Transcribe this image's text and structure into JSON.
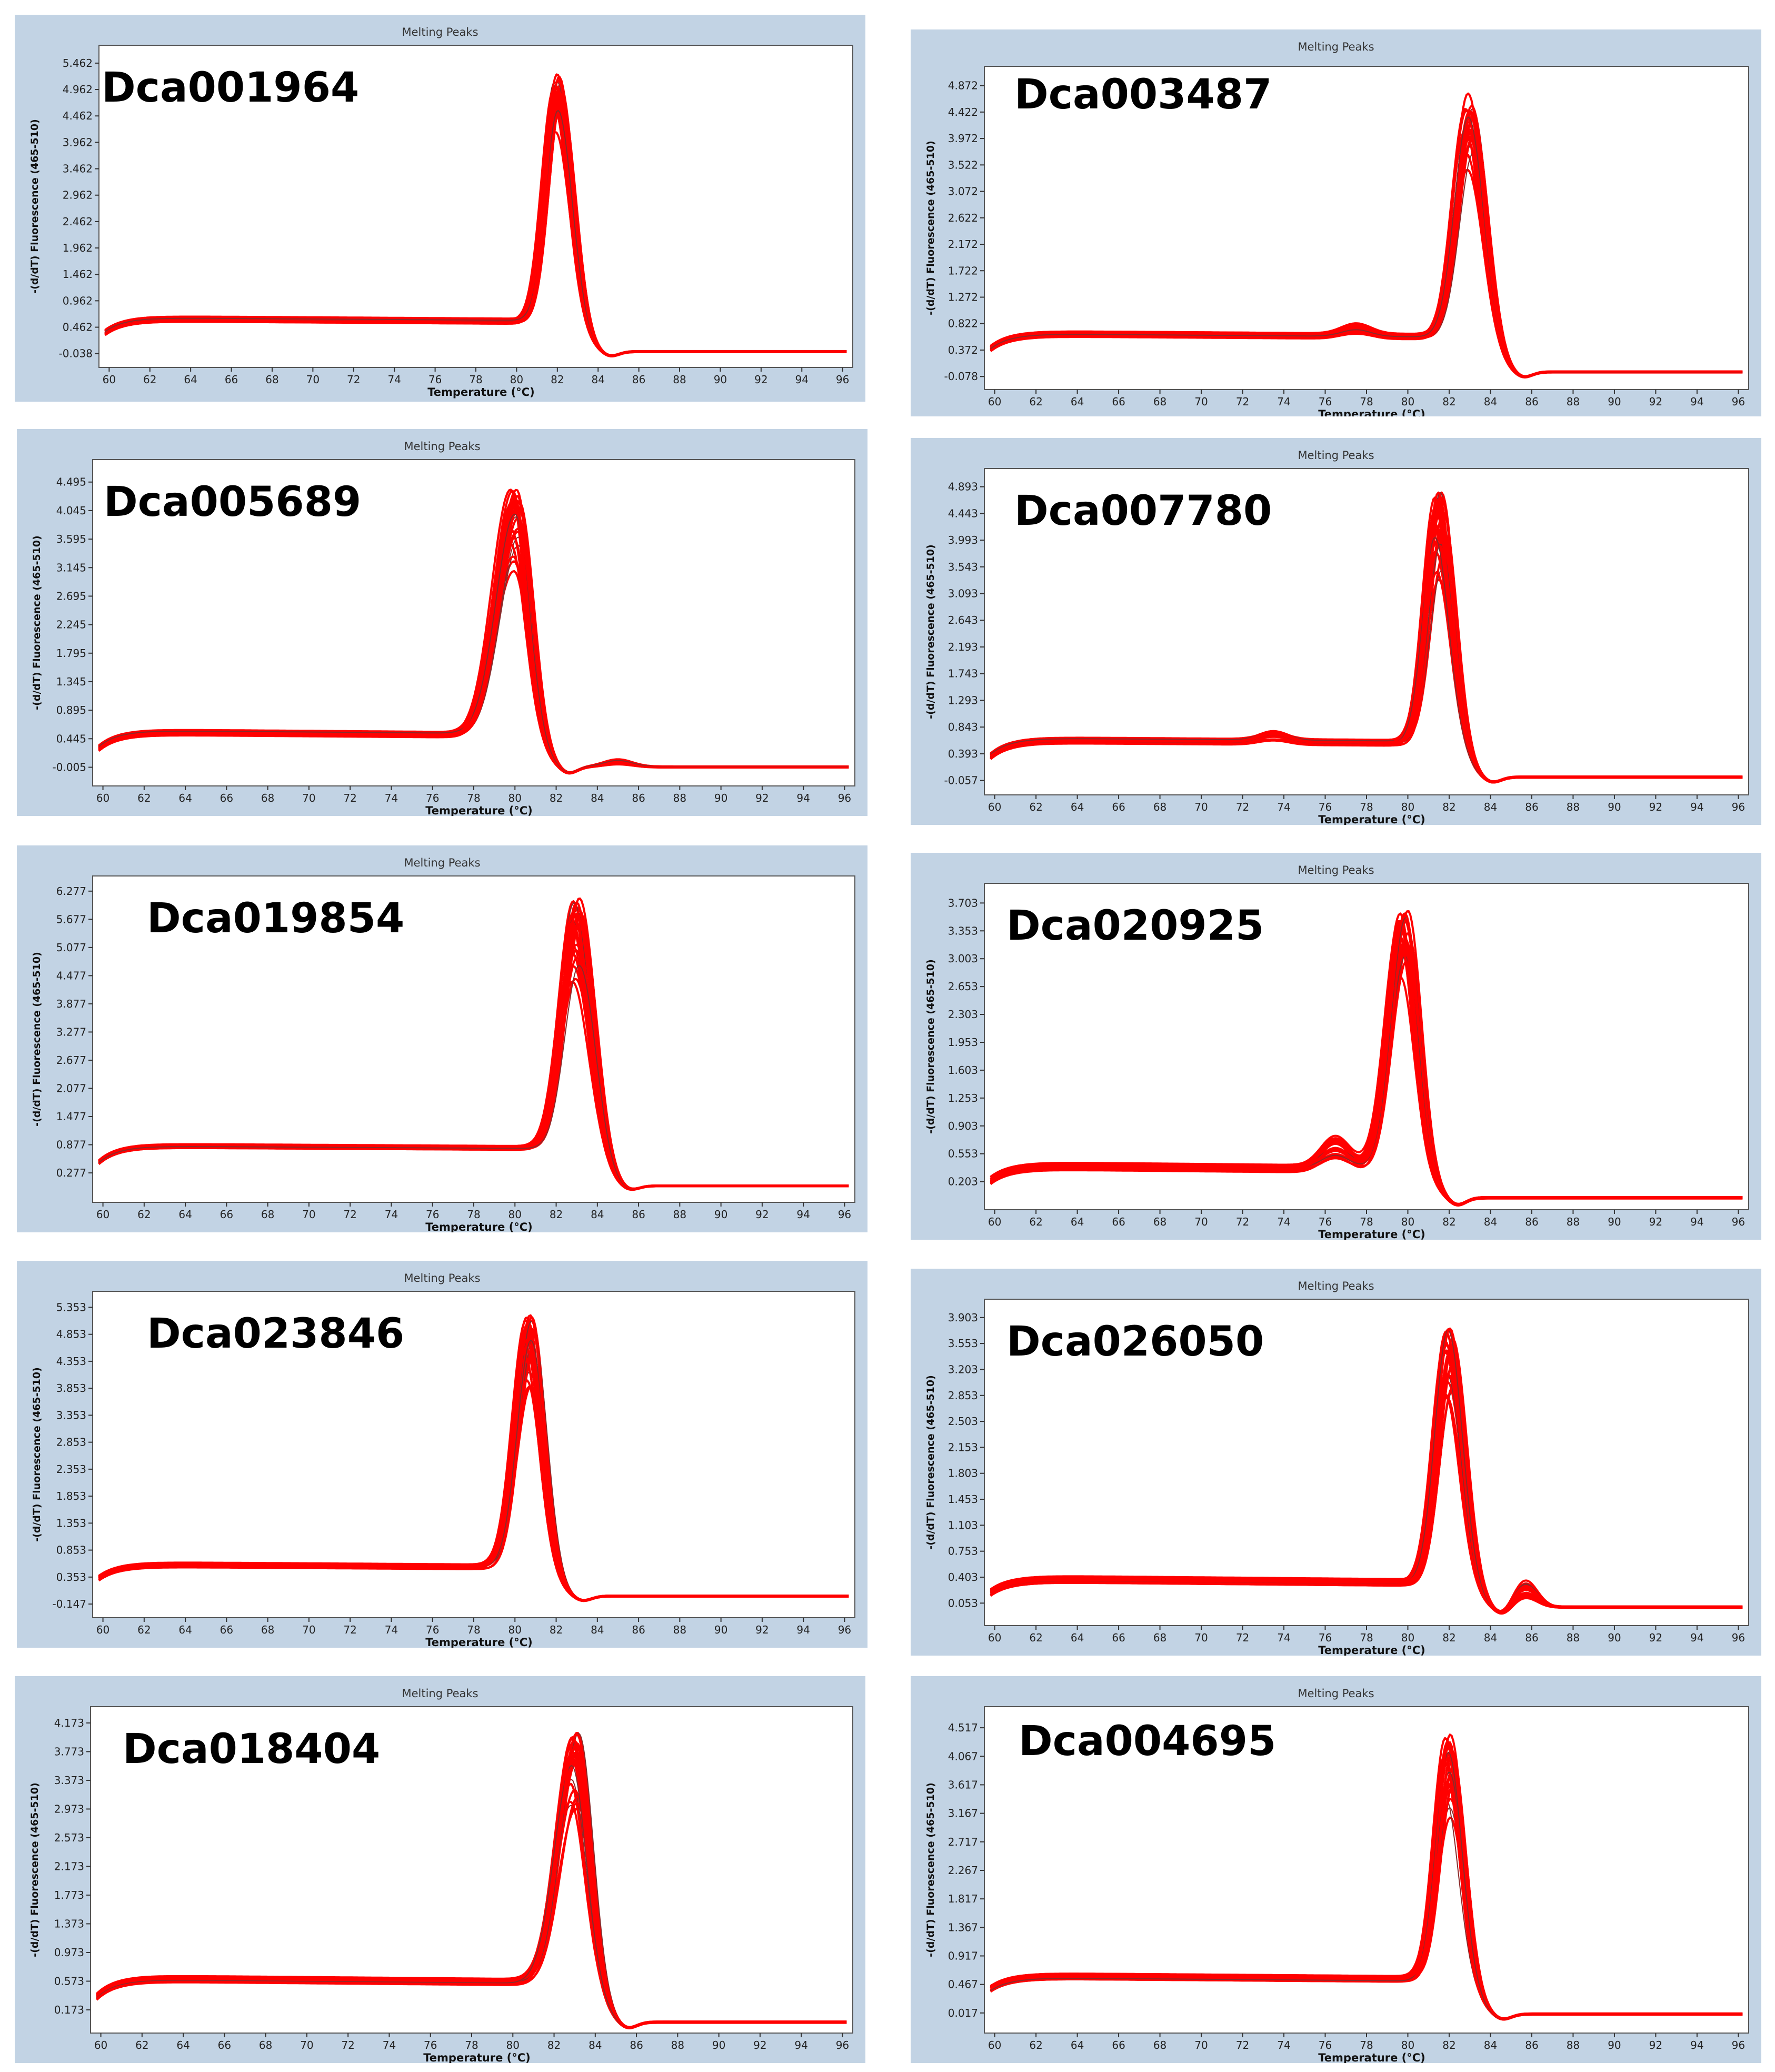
{
  "colors": {
    "panel_bg": "#c2d3e4",
    "plot_bg": "#ffffff",
    "curve_red": "#ff0000",
    "curve_dark": "#8b2a2a"
  },
  "chart_data": [
    {
      "type": "line",
      "title": "Melting Peaks",
      "label": "Dca001964",
      "xlabel": "Temperature (°C)",
      "ylabel": "-(d/dT) Fluorescence (465-510)",
      "xticks": [
        "60",
        "62",
        "64",
        "66",
        "68",
        "70",
        "72",
        "74",
        "76",
        "78",
        "80",
        "82",
        "84",
        "86",
        "88",
        "90",
        "92",
        "94",
        "96"
      ],
      "yticks": [
        "-0.038",
        "0.462",
        "0.962",
        "1.462",
        "1.962",
        "2.462",
        "2.962",
        "3.462",
        "3.962",
        "4.462",
        "4.962",
        "5.462"
      ],
      "xlim": [
        59.5,
        96.5
      ],
      "ylim": [
        -0.3,
        5.8
      ],
      "grid": false,
      "profile": {
        "baseline": 0.62,
        "start": 0.36,
        "shoulder_x": 62.0,
        "peak_x": 82.0,
        "peak_y": 5.3,
        "peak_min": 4.2,
        "width_left": 0.85,
        "width_right": 0.95,
        "tail": -0.02,
        "drop_end": 85.5,
        "end_y": 0.0
      }
    },
    {
      "type": "line",
      "title": "Melting Peaks",
      "label": "Dca003487",
      "xlabel": "Temperature (°C)",
      "ylabel": "-(d/dT) Fluorescence (465-510)",
      "xticks": [
        "60",
        "62",
        "64",
        "66",
        "68",
        "70",
        "72",
        "74",
        "76",
        "78",
        "80",
        "82",
        "84",
        "86",
        "88",
        "90",
        "92",
        "94",
        "96"
      ],
      "yticks": [
        "-0.078",
        "0.372",
        "0.822",
        "1.272",
        "1.722",
        "2.172",
        "2.622",
        "3.072",
        "3.522",
        "3.972",
        "4.422",
        "4.872"
      ],
      "xlim": [
        59.5,
        96.5
      ],
      "ylim": [
        -0.3,
        5.2
      ],
      "grid": false,
      "profile": {
        "baseline": 0.65,
        "start": 0.4,
        "shoulder_x": 62.5,
        "peak_x": 83.0,
        "peak_y": 4.75,
        "peak_min": 3.5,
        "width_left": 0.95,
        "width_right": 1.0,
        "tail": 0.02,
        "drop_end": 87.0,
        "end_y": 0.0,
        "bump": [
          77.5,
          0.12
        ]
      }
    },
    {
      "type": "line",
      "title": "Melting Peaks",
      "label": "Dca005689",
      "xlabel": "Temperature (°C)",
      "ylabel": "-(d/dT) Fluorescence (465-510)",
      "xticks": [
        "60",
        "62",
        "64",
        "66",
        "68",
        "70",
        "72",
        "74",
        "76",
        "78",
        "80",
        "82",
        "84",
        "86",
        "88",
        "90",
        "92",
        "94",
        "96"
      ],
      "yticks": [
        "-0.005",
        "0.445",
        "0.895",
        "1.345",
        "1.795",
        "2.245",
        "2.695",
        "3.145",
        "3.595",
        "4.045",
        "4.495"
      ],
      "xlim": [
        59.5,
        96.5
      ],
      "ylim": [
        -0.3,
        4.85
      ],
      "grid": false,
      "profile": {
        "baseline": 0.55,
        "start": 0.3,
        "shoulder_x": 62.5,
        "peak_x": 80.0,
        "peak_y": 4.45,
        "peak_min": 3.1,
        "width_left": 1.3,
        "width_right": 0.95,
        "tail": 0.03,
        "drop_end": 86.0,
        "end_y": 0.0,
        "bump": [
          85.0,
          0.08
        ]
      }
    },
    {
      "type": "line",
      "title": "Melting Peaks",
      "label": "Dca007780",
      "xlabel": "Temperature (°C)",
      "ylabel": "-(d/dT) Fluorescence (465-510)",
      "xticks": [
        "60",
        "62",
        "64",
        "66",
        "68",
        "70",
        "72",
        "74",
        "76",
        "78",
        "80",
        "82",
        "84",
        "86",
        "88",
        "90",
        "92",
        "94",
        "96"
      ],
      "yticks": [
        "-0.057",
        "0.393",
        "0.843",
        "1.293",
        "1.743",
        "2.193",
        "2.643",
        "3.093",
        "3.543",
        "3.993",
        "4.443",
        "4.893"
      ],
      "xlim": [
        59.5,
        96.5
      ],
      "ylim": [
        -0.3,
        5.2
      ],
      "grid": false,
      "profile": {
        "baseline": 0.62,
        "start": 0.35,
        "shoulder_x": 62.5,
        "peak_x": 81.5,
        "peak_y": 4.85,
        "peak_min": 3.4,
        "width_left": 0.85,
        "width_right": 0.9,
        "tail": 0.0,
        "drop_end": 85.0,
        "end_y": 0.0,
        "bump": [
          73.5,
          0.12
        ]
      }
    },
    {
      "type": "line",
      "title": "Melting Peaks",
      "label": "Dca019854",
      "xlabel": "Temperature (°C)",
      "ylabel": "-(d/dT) Fluorescence (465-510)",
      "xticks": [
        "60",
        "62",
        "64",
        "66",
        "68",
        "70",
        "72",
        "74",
        "76",
        "78",
        "80",
        "82",
        "84",
        "86",
        "88",
        "90",
        "92",
        "94",
        "96"
      ],
      "yticks": [
        "0.277",
        "0.877",
        "1.477",
        "2.077",
        "2.677",
        "3.277",
        "3.877",
        "4.477",
        "5.077",
        "5.677",
        "6.277"
      ],
      "xlim": [
        59.5,
        96.5
      ],
      "ylim": [
        -0.35,
        6.6
      ],
      "grid": false,
      "profile": {
        "baseline": 0.85,
        "start": 0.5,
        "shoulder_x": 62.0,
        "peak_x": 83.0,
        "peak_y": 6.15,
        "peak_min": 4.4,
        "width_left": 1.0,
        "width_right": 1.05,
        "tail": 0.0,
        "drop_end": 86.5,
        "end_y": 0.0
      }
    },
    {
      "type": "line",
      "title": "Melting Peaks",
      "label": "Dca020925",
      "xlabel": "Temperature (°C)",
      "ylabel": "-(d/dT) Fluorescence (465-510)",
      "xticks": [
        "60",
        "62",
        "64",
        "66",
        "68",
        "70",
        "72",
        "74",
        "76",
        "78",
        "80",
        "82",
        "84",
        "86",
        "88",
        "90",
        "92",
        "94",
        "96"
      ],
      "yticks": [
        "0.203",
        "0.553",
        "0.903",
        "1.253",
        "1.603",
        "1.953",
        "2.303",
        "2.653",
        "3.003",
        "3.353",
        "3.703"
      ],
      "xlim": [
        59.5,
        96.5
      ],
      "ylim": [
        -0.15,
        3.95
      ],
      "grid": false,
      "profile": {
        "baseline": 0.4,
        "start": 0.22,
        "shoulder_x": 62.5,
        "peak_x": 79.8,
        "peak_y": 3.62,
        "peak_min": 2.8,
        "width_left": 1.0,
        "width_right": 0.9,
        "tail": 0.0,
        "drop_end": 83.5,
        "end_y": 0.0,
        "bump": [
          76.5,
          0.25
        ]
      }
    },
    {
      "type": "line",
      "title": "Melting Peaks",
      "label": "Dca023846",
      "xlabel": "Temperature (°C)",
      "ylabel": "-(d/dT) Fluorescence (465-510)",
      "xticks": [
        "60",
        "62",
        "64",
        "66",
        "68",
        "70",
        "72",
        "74",
        "76",
        "78",
        "80",
        "82",
        "84",
        "86",
        "88",
        "90",
        "92",
        "94",
        "96"
      ],
      "yticks": [
        "-0.147",
        "0.353",
        "0.853",
        "1.353",
        "1.853",
        "2.353",
        "2.853",
        "3.353",
        "3.853",
        "4.353",
        "4.853",
        "5.353"
      ],
      "xlim": [
        59.5,
        96.5
      ],
      "ylim": [
        -0.4,
        5.65
      ],
      "grid": false,
      "profile": {
        "baseline": 0.58,
        "start": 0.33,
        "shoulder_x": 62.5,
        "peak_x": 80.7,
        "peak_y": 5.25,
        "peak_min": 3.9,
        "width_left": 0.95,
        "width_right": 0.9,
        "tail": 0.0,
        "drop_end": 84.0,
        "end_y": 0.0
      }
    },
    {
      "type": "line",
      "title": "Melting Peaks",
      "label": "Dca026050",
      "xlabel": "Temperature (°C)",
      "ylabel": "-(d/dT) Fluorescence (465-510)",
      "xticks": [
        "60",
        "62",
        "64",
        "66",
        "68",
        "70",
        "72",
        "74",
        "76",
        "78",
        "80",
        "82",
        "84",
        "86",
        "88",
        "90",
        "92",
        "94",
        "96"
      ],
      "yticks": [
        "0.053",
        "0.403",
        "0.753",
        "1.103",
        "1.453",
        "1.803",
        "2.153",
        "2.503",
        "2.853",
        "3.203",
        "3.553",
        "3.903"
      ],
      "xlim": [
        59.5,
        96.5
      ],
      "ylim": [
        -0.25,
        4.15
      ],
      "grid": false,
      "profile": {
        "baseline": 0.38,
        "start": 0.2,
        "shoulder_x": 62.5,
        "peak_x": 82.0,
        "peak_y": 3.82,
        "peak_min": 2.9,
        "width_left": 0.9,
        "width_right": 0.95,
        "tail": 0.04,
        "drop_end": 88.0,
        "end_y": 0.0,
        "bump2": [
          85.7,
          0.25
        ]
      }
    },
    {
      "type": "line",
      "title": "Melting Peaks",
      "label": "Dca018404",
      "xlabel": "Temperature (°C)",
      "ylabel": "-(d/dT) Fluorescence (465-510)",
      "xticks": [
        "60",
        "62",
        "64",
        "66",
        "68",
        "70",
        "72",
        "74",
        "76",
        "78",
        "80",
        "82",
        "84",
        "86",
        "88",
        "90",
        "92",
        "94",
        "96"
      ],
      "yticks": [
        "0.173",
        "0.573",
        "0.973",
        "1.373",
        "1.773",
        "2.173",
        "2.573",
        "2.973",
        "3.373",
        "3.773",
        "4.173"
      ],
      "xlim": [
        59.5,
        96.5
      ],
      "ylim": [
        -0.15,
        4.4
      ],
      "grid": false,
      "profile": {
        "baseline": 0.6,
        "start": 0.35,
        "shoulder_x": 62.5,
        "peak_x": 83.0,
        "peak_y": 4.1,
        "peak_min": 3.0,
        "width_left": 1.2,
        "width_right": 0.95,
        "tail": 0.0,
        "drop_end": 86.0,
        "end_y": 0.0
      }
    },
    {
      "type": "line",
      "title": "Melting Peaks",
      "label": "Dca004695",
      "xlabel": "Temperature (°C)",
      "ylabel": "-(d/dT) Fluorescence (465-510)",
      "xticks": [
        "60",
        "62",
        "64",
        "66",
        "68",
        "70",
        "72",
        "74",
        "76",
        "78",
        "80",
        "82",
        "84",
        "86",
        "88",
        "90",
        "92",
        "94",
        "96"
      ],
      "yticks": [
        "0.017",
        "0.467",
        "0.917",
        "1.367",
        "1.817",
        "2.267",
        "2.717",
        "3.167",
        "3.617",
        "4.067",
        "4.517"
      ],
      "xlim": [
        59.5,
        96.5
      ],
      "ylim": [
        -0.3,
        4.85
      ],
      "grid": false,
      "profile": {
        "baseline": 0.6,
        "start": 0.4,
        "shoulder_x": 62.5,
        "peak_x": 82.0,
        "peak_y": 4.45,
        "peak_min": 3.2,
        "width_left": 0.85,
        "width_right": 0.9,
        "tail": 0.0,
        "drop_end": 85.0,
        "end_y": 0.0
      }
    }
  ]
}
